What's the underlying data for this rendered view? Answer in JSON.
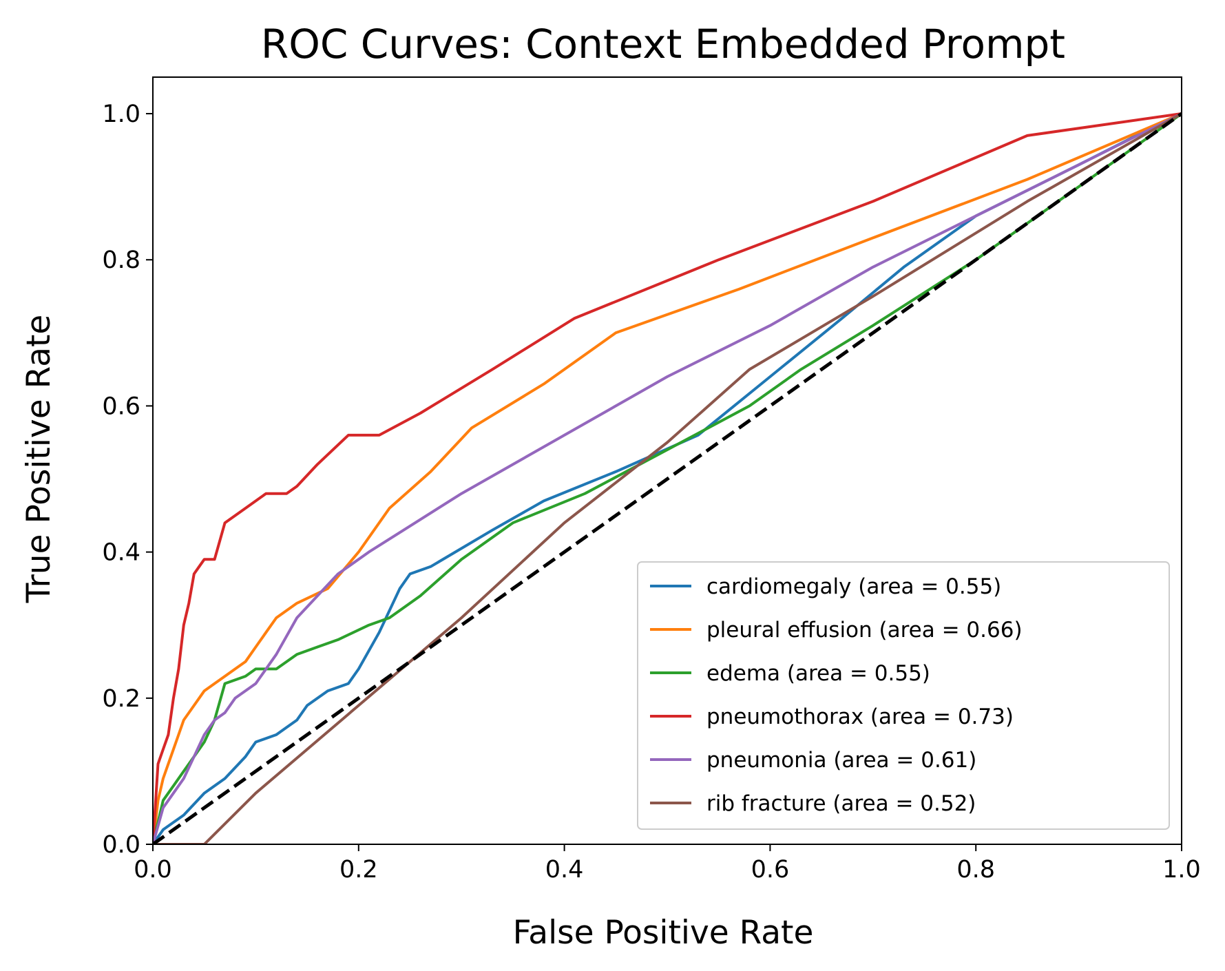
{
  "chart_data": {
    "type": "line",
    "title": "ROC Curves: Context Embedded Prompt",
    "xlabel": "False Positive Rate",
    "ylabel": "True Positive Rate",
    "xlim": [
      0.0,
      1.0
    ],
    "ylim": [
      0.0,
      1.05
    ],
    "xticks": [
      "0.0",
      "0.2",
      "0.4",
      "0.6",
      "0.8",
      "1.0"
    ],
    "yticks": [
      "0.0",
      "0.2",
      "0.4",
      "0.6",
      "0.8",
      "1.0"
    ],
    "grid": false,
    "legend_position": "lower-right",
    "series": [
      {
        "name": "cardiomegaly (area = 0.55)",
        "color": "#1f77b4",
        "points": [
          [
            0,
            0
          ],
          [
            0.01,
            0.02
          ],
          [
            0.03,
            0.04
          ],
          [
            0.05,
            0.07
          ],
          [
            0.07,
            0.09
          ],
          [
            0.09,
            0.12
          ],
          [
            0.1,
            0.14
          ],
          [
            0.12,
            0.15
          ],
          [
            0.13,
            0.16
          ],
          [
            0.14,
            0.17
          ],
          [
            0.15,
            0.19
          ],
          [
            0.17,
            0.21
          ],
          [
            0.19,
            0.22
          ],
          [
            0.2,
            0.24
          ],
          [
            0.22,
            0.29
          ],
          [
            0.24,
            0.35
          ],
          [
            0.25,
            0.37
          ],
          [
            0.27,
            0.38
          ],
          [
            0.33,
            0.43
          ],
          [
            0.38,
            0.47
          ],
          [
            0.45,
            0.51
          ],
          [
            0.53,
            0.56
          ],
          [
            0.6,
            0.64
          ],
          [
            0.67,
            0.72
          ],
          [
            0.73,
            0.79
          ],
          [
            0.8,
            0.86
          ],
          [
            0.9,
            0.93
          ],
          [
            0.97,
            0.98
          ],
          [
            1.0,
            1.0
          ]
        ]
      },
      {
        "name": "pleural effusion (area = 0.66)",
        "color": "#ff7f0e",
        "points": [
          [
            0,
            0
          ],
          [
            0.005,
            0.06
          ],
          [
            0.01,
            0.09
          ],
          [
            0.02,
            0.13
          ],
          [
            0.03,
            0.17
          ],
          [
            0.04,
            0.19
          ],
          [
            0.05,
            0.21
          ],
          [
            0.06,
            0.22
          ],
          [
            0.07,
            0.23
          ],
          [
            0.08,
            0.24
          ],
          [
            0.09,
            0.25
          ],
          [
            0.1,
            0.27
          ],
          [
            0.11,
            0.29
          ],
          [
            0.12,
            0.31
          ],
          [
            0.14,
            0.33
          ],
          [
            0.17,
            0.35
          ],
          [
            0.2,
            0.4
          ],
          [
            0.23,
            0.46
          ],
          [
            0.27,
            0.51
          ],
          [
            0.31,
            0.57
          ],
          [
            0.38,
            0.63
          ],
          [
            0.45,
            0.7
          ],
          [
            0.57,
            0.76
          ],
          [
            0.7,
            0.83
          ],
          [
            0.85,
            0.91
          ],
          [
            1.0,
            1.0
          ]
        ]
      },
      {
        "name": "edema (area = 0.55)",
        "color": "#2ca02c",
        "points": [
          [
            0,
            0
          ],
          [
            0.01,
            0.06
          ],
          [
            0.02,
            0.08
          ],
          [
            0.03,
            0.1
          ],
          [
            0.04,
            0.12
          ],
          [
            0.05,
            0.14
          ],
          [
            0.06,
            0.17
          ],
          [
            0.07,
            0.22
          ],
          [
            0.09,
            0.23
          ],
          [
            0.1,
            0.24
          ],
          [
            0.12,
            0.24
          ],
          [
            0.14,
            0.26
          ],
          [
            0.16,
            0.27
          ],
          [
            0.18,
            0.28
          ],
          [
            0.21,
            0.3
          ],
          [
            0.23,
            0.31
          ],
          [
            0.26,
            0.34
          ],
          [
            0.3,
            0.39
          ],
          [
            0.35,
            0.44
          ],
          [
            0.42,
            0.48
          ],
          [
            0.5,
            0.54
          ],
          [
            0.58,
            0.6
          ],
          [
            0.63,
            0.65
          ],
          [
            0.7,
            0.71
          ],
          [
            0.8,
            0.8
          ],
          [
            0.9,
            0.9
          ],
          [
            1.0,
            1.0
          ]
        ]
      },
      {
        "name": "pneumothorax (area = 0.73)",
        "color": "#d62728",
        "points": [
          [
            0,
            0
          ],
          [
            0.005,
            0.11
          ],
          [
            0.01,
            0.13
          ],
          [
            0.015,
            0.15
          ],
          [
            0.02,
            0.2
          ],
          [
            0.025,
            0.24
          ],
          [
            0.03,
            0.3
          ],
          [
            0.035,
            0.33
          ],
          [
            0.04,
            0.37
          ],
          [
            0.045,
            0.38
          ],
          [
            0.05,
            0.39
          ],
          [
            0.06,
            0.39
          ],
          [
            0.07,
            0.44
          ],
          [
            0.09,
            0.46
          ],
          [
            0.11,
            0.48
          ],
          [
            0.13,
            0.48
          ],
          [
            0.14,
            0.49
          ],
          [
            0.16,
            0.52
          ],
          [
            0.19,
            0.56
          ],
          [
            0.22,
            0.56
          ],
          [
            0.26,
            0.59
          ],
          [
            0.33,
            0.65
          ],
          [
            0.41,
            0.72
          ],
          [
            0.55,
            0.8
          ],
          [
            0.7,
            0.88
          ],
          [
            0.85,
            0.97
          ],
          [
            1.0,
            1.0
          ]
        ]
      },
      {
        "name": "pneumonia (area = 0.61)",
        "color": "#9467bd",
        "points": [
          [
            0,
            0
          ],
          [
            0.01,
            0.05
          ],
          [
            0.02,
            0.07
          ],
          [
            0.03,
            0.09
          ],
          [
            0.04,
            0.12
          ],
          [
            0.05,
            0.15
          ],
          [
            0.06,
            0.17
          ],
          [
            0.07,
            0.18
          ],
          [
            0.08,
            0.2
          ],
          [
            0.1,
            0.22
          ],
          [
            0.12,
            0.26
          ],
          [
            0.14,
            0.31
          ],
          [
            0.16,
            0.34
          ],
          [
            0.18,
            0.37
          ],
          [
            0.21,
            0.4
          ],
          [
            0.3,
            0.48
          ],
          [
            0.4,
            0.56
          ],
          [
            0.5,
            0.64
          ],
          [
            0.6,
            0.71
          ],
          [
            0.7,
            0.79
          ],
          [
            0.8,
            0.86
          ],
          [
            0.9,
            0.93
          ],
          [
            1.0,
            1.0
          ]
        ]
      },
      {
        "name": "rib fracture (area = 0.52)",
        "color": "#8c564b",
        "points": [
          [
            0,
            0
          ],
          [
            0.05,
            0
          ],
          [
            0.1,
            0.07
          ],
          [
            0.2,
            0.19
          ],
          [
            0.3,
            0.31
          ],
          [
            0.4,
            0.44
          ],
          [
            0.5,
            0.55
          ],
          [
            0.58,
            0.65
          ],
          [
            0.7,
            0.75
          ],
          [
            0.85,
            0.88
          ],
          [
            1.0,
            1.0
          ]
        ]
      }
    ],
    "reference_line": {
      "color": "#000000",
      "points": [
        [
          0,
          0
        ],
        [
          1,
          1
        ]
      ]
    }
  }
}
